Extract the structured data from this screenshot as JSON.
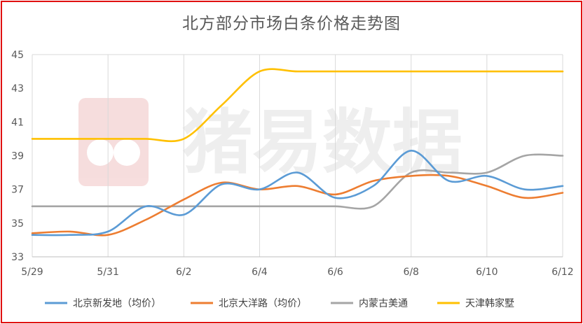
{
  "chart_data": {
    "type": "line",
    "title": "北方部分市场白条价格走势图",
    "x": [
      "5/29",
      "5/30",
      "5/31",
      "6/1",
      "6/2",
      "6/3",
      "6/4",
      "6/5",
      "6/6",
      "6/7",
      "6/8",
      "6/9",
      "6/10",
      "6/11",
      "6/12"
    ],
    "x_tick_labels": [
      "5/29",
      "5/31",
      "6/2",
      "6/4",
      "6/6",
      "6/8",
      "6/10",
      "6/12"
    ],
    "ylim": [
      33,
      45
    ],
    "y_ticks": [
      33,
      35,
      37,
      39,
      41,
      43,
      45
    ],
    "grid": "vertical",
    "legend_position": "bottom",
    "series": [
      {
        "name": "北京新发地（均价）",
        "color": "#5b9bd5",
        "values": [
          34.3,
          34.3,
          34.5,
          36.0,
          35.5,
          37.3,
          37.0,
          38.0,
          36.5,
          37.2,
          39.3,
          37.5,
          37.8,
          37.0,
          37.2
        ]
      },
      {
        "name": "北京大洋路（均价）",
        "color": "#ed7d31",
        "values": [
          34.4,
          34.5,
          34.3,
          35.2,
          36.4,
          37.4,
          37.0,
          37.2,
          36.7,
          37.5,
          37.8,
          37.8,
          37.2,
          36.5,
          36.8
        ]
      },
      {
        "name": "内蒙古美通",
        "color": "#a5a5a5",
        "values": [
          36.0,
          36.0,
          36.0,
          36.0,
          36.0,
          36.0,
          36.0,
          36.0,
          36.0,
          36.0,
          38.0,
          38.0,
          38.0,
          39.0,
          39.0
        ]
      },
      {
        "name": "天津韩家墅",
        "color": "#ffc000",
        "values": [
          40.0,
          40.0,
          40.0,
          40.0,
          40.0,
          42.0,
          44.0,
          44.0,
          44.0,
          44.0,
          44.0,
          44.0,
          44.0,
          44.0,
          44.0
        ]
      }
    ]
  },
  "watermark": {
    "text": "猪易数据",
    "logo": "pig-logo"
  }
}
